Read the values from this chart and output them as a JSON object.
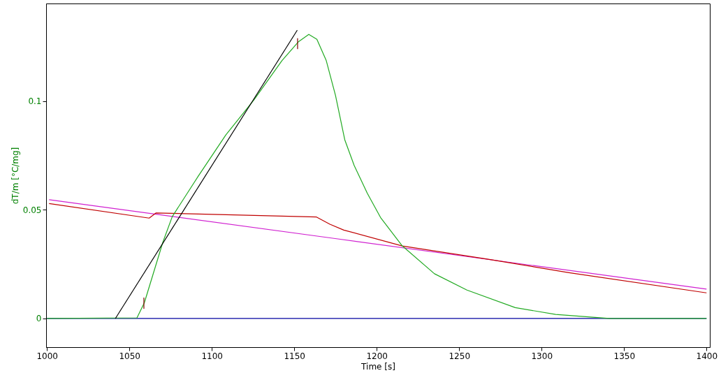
{
  "chart_data": {
    "type": "line",
    "xlabel": "Time [s]",
    "ylabel": "dT/m  [°C/mg]",
    "xlim": [
      999.5,
      1402
    ],
    "ylim": [
      -0.0132,
      0.145
    ],
    "xticks": [
      1000,
      1050,
      1100,
      1150,
      1200,
      1250,
      1300,
      1350,
      1400
    ],
    "yticks": [
      0,
      0.05,
      0.1
    ],
    "grid": false,
    "marker": "none",
    "line_style": "solid",
    "series": [
      {
        "color": "#0000a0",
        "x": [
          1000,
          1400
        ],
        "values": [
          0,
          0
        ]
      },
      {
        "color": "#d020d0",
        "x": [
          1001.3,
          1174.8,
          1400
        ],
        "values": [
          0.0547,
          0.0368,
          0.0135
        ]
      },
      {
        "color": "#c00000",
        "x": [
          1001.3,
          1062,
          1066.2,
          1163.5,
          1171.6,
          1180,
          1215.5,
          1267.6,
          1316.6,
          1400
        ],
        "values": [
          0.0529,
          0.0462,
          0.0486,
          0.0467,
          0.0434,
          0.0407,
          0.0334,
          0.0273,
          0.0211,
          0.0118
        ]
      },
      {
        "color": "#22aa22",
        "x": [
          1000,
          1054.6,
          1059.1,
          1070.3,
          1076,
          1091.5,
          1108.5,
          1125.5,
          1142.5,
          1152.4,
          1158.8,
          1163.7,
          1169.4,
          1175,
          1180.6,
          1186.3,
          1194.3,
          1202.3,
          1215.5,
          1235,
          1254.7,
          1284,
          1308.5,
          1341,
          1400
        ],
        "values": [
          0,
          0.0003,
          0.0073,
          0.0351,
          0.0469,
          0.0652,
          0.0845,
          0.1006,
          0.1187,
          0.1273,
          0.1308,
          0.1285,
          0.1187,
          0.1027,
          0.0823,
          0.0705,
          0.0576,
          0.0465,
          0.0334,
          0.0206,
          0.0131,
          0.005,
          0.0019,
          0,
          0
        ]
      },
      {
        "color": "#000000",
        "x": [
          1041.5,
          1151.8
        ],
        "values": [
          0,
          0.1327
        ]
      },
      {
        "color": "#800000",
        "x": [
          1058.8,
          1058.8
        ],
        "values": [
          0.0045,
          0.0096
        ]
      },
      {
        "color": "#800000",
        "x": [
          1152,
          1152
        ],
        "values": [
          0.124,
          0.129
        ]
      }
    ]
  }
}
